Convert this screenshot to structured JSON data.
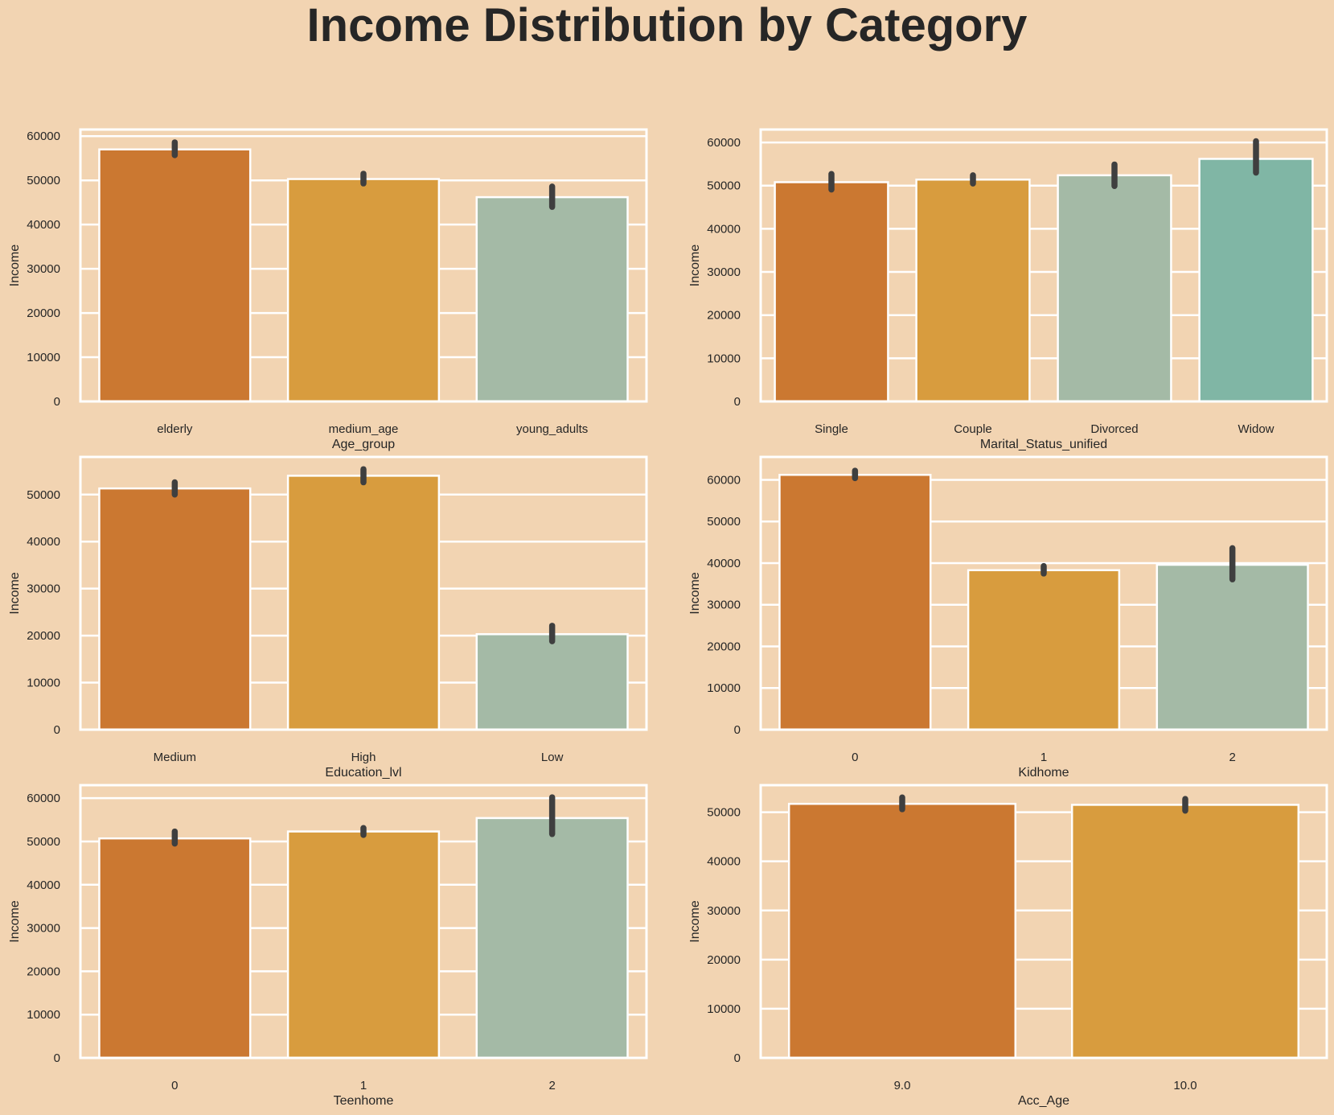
{
  "figure": {
    "suptitle": "Income Distribution by Category",
    "background": "#f2d4b2",
    "palette": [
      "#cb7831",
      "#d89c3e",
      "#a4baa6",
      "#80b6a5"
    ],
    "bar_edge": "#ffffff",
    "errorbar_color": "#3f3f3f",
    "grid": true,
    "grid_color": "#ffffff"
  },
  "chart_data": [
    {
      "type": "bar",
      "categories": [
        "elderly",
        "medium_age",
        "young_adults"
      ],
      "values": [
        57000,
        50300,
        46200
      ],
      "errors": [
        [
          55700,
          58600
        ],
        [
          49300,
          51500
        ],
        [
          44000,
          48600
        ]
      ],
      "xlabel": "Age_group",
      "ylabel": "Income",
      "ylim": [
        0,
        61500
      ],
      "yticks": [
        0,
        10000,
        20000,
        30000,
        40000,
        50000,
        60000
      ]
    },
    {
      "type": "bar",
      "categories": [
        "Single",
        "Couple",
        "Divorced",
        "Widow"
      ],
      "values": [
        50800,
        51400,
        52400,
        56200
      ],
      "errors": [
        [
          49100,
          52700
        ],
        [
          50500,
          52400
        ],
        [
          49900,
          54900
        ],
        [
          53000,
          60300
        ]
      ],
      "xlabel": "Marital_Status_unified",
      "ylabel": "Income",
      "ylim": [
        0,
        63000
      ],
      "yticks": [
        0,
        10000,
        20000,
        30000,
        40000,
        50000,
        60000
      ]
    },
    {
      "type": "bar",
      "categories": [
        "Medium",
        "High",
        "Low"
      ],
      "values": [
        51300,
        54000,
        20300
      ],
      "errors": [
        [
          50000,
          52600
        ],
        [
          52600,
          55400
        ],
        [
          18800,
          22100
        ]
      ],
      "xlabel": "Education_lvl",
      "ylabel": "Income",
      "ylim": [
        0,
        58000
      ],
      "yticks": [
        0,
        10000,
        20000,
        30000,
        40000,
        50000
      ]
    },
    {
      "type": "bar",
      "categories": [
        "0",
        "1",
        "2"
      ],
      "values": [
        61200,
        38300,
        39600
      ],
      "errors": [
        [
          60400,
          62200
        ],
        [
          37500,
          39300
        ],
        [
          36100,
          43600
        ]
      ],
      "xlabel": "Kidhome",
      "ylabel": "Income",
      "ylim": [
        0,
        65500
      ],
      "yticks": [
        0,
        10000,
        20000,
        30000,
        40000,
        50000,
        60000
      ]
    },
    {
      "type": "bar",
      "categories": [
        "0",
        "1",
        "2"
      ],
      "values": [
        50700,
        52300,
        55400
      ],
      "errors": [
        [
          49500,
          52300
        ],
        [
          51500,
          53100
        ],
        [
          51700,
          60200
        ]
      ],
      "xlabel": "Teenhome",
      "ylabel": "Income",
      "ylim": [
        0,
        63000
      ],
      "yticks": [
        0,
        10000,
        20000,
        30000,
        40000,
        50000,
        60000
      ]
    },
    {
      "type": "bar",
      "categories": [
        "9.0",
        "10.0"
      ],
      "values": [
        51700,
        51500
      ],
      "errors": [
        [
          50600,
          53000
        ],
        [
          50300,
          52700
        ]
      ],
      "xlabel": "Acc_Age",
      "ylabel": "Income",
      "ylim": [
        0,
        55500
      ],
      "yticks": [
        0,
        10000,
        20000,
        30000,
        40000,
        50000
      ]
    }
  ]
}
